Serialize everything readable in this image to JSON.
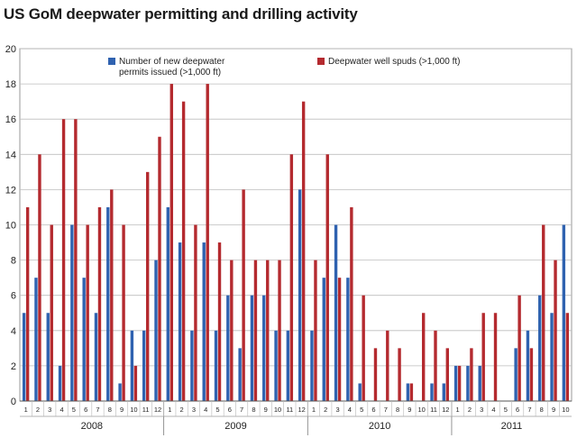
{
  "chart_data": {
    "type": "bar",
    "title": "US GoM deepwater permitting and drilling activity",
    "ylim": [
      0,
      20
    ],
    "yticks": [
      0,
      2,
      4,
      6,
      8,
      10,
      12,
      14,
      16,
      18,
      20
    ],
    "grid": true,
    "legend_position": "top",
    "years": [
      "2008",
      "2009",
      "2010",
      "2011"
    ],
    "categories": [
      "1",
      "2",
      "3",
      "4",
      "5",
      "6",
      "7",
      "8",
      "9",
      "10",
      "11",
      "12",
      "1",
      "2",
      "3",
      "4",
      "5",
      "6",
      "7",
      "8",
      "9",
      "10",
      "11",
      "12",
      "1",
      "2",
      "3",
      "4",
      "5",
      "6",
      "7",
      "8",
      "9",
      "10",
      "11",
      "12",
      "1",
      "2",
      "3",
      "4",
      "5",
      "6",
      "7",
      "8",
      "9",
      "10"
    ],
    "series": [
      {
        "name": "Number of new deepwater permits issued (>1,000 ft)",
        "legend_lines": [
          "Number of new deepwater",
          "permits issued (>1,000 ft)"
        ],
        "color": "#2f62b0",
        "values": [
          5,
          7,
          5,
          2,
          10,
          7,
          5,
          11,
          1,
          4,
          4,
          8,
          11,
          9,
          4,
          9,
          4,
          6,
          3,
          6,
          6,
          4,
          4,
          12,
          4,
          7,
          10,
          7,
          1,
          0,
          0,
          0,
          1,
          0,
          1,
          1,
          2,
          2,
          2,
          0,
          0,
          3,
          4,
          6,
          5,
          10
        ]
      },
      {
        "name": "Deepwater well spuds (>1,000 ft)",
        "legend_lines": [
          "Deepwater well spuds (>1,000 ft)"
        ],
        "color": "#b42a2f",
        "values": [
          11,
          14,
          10,
          16,
          16,
          10,
          11,
          12,
          10,
          2,
          13,
          15,
          18,
          17,
          10,
          18,
          9,
          8,
          12,
          8,
          8,
          8,
          14,
          17,
          8,
          14,
          7,
          11,
          6,
          3,
          4,
          3,
          1,
          5,
          4,
          3,
          2,
          3,
          5,
          5,
          0,
          6,
          3,
          10,
          8,
          5
        ]
      }
    ]
  }
}
